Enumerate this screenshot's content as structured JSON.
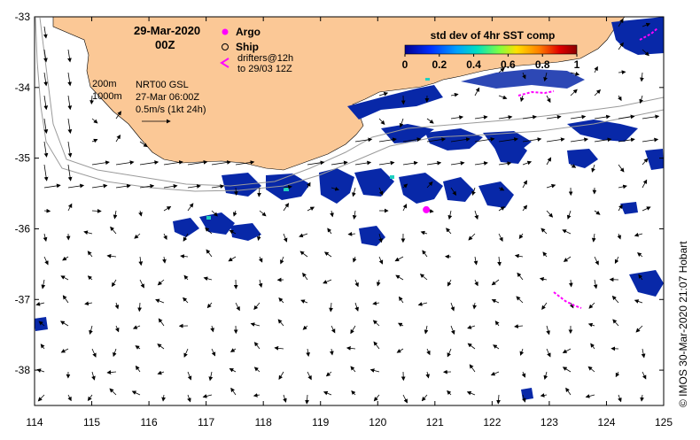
{
  "map": {
    "date": "29-Mar-2020",
    "time": "00Z",
    "legend": {
      "argo": "Argo",
      "ship": "Ship",
      "drifters_line1": "drifters@12h",
      "drifters_line2": "to 29/03 12Z"
    },
    "contours": {
      "c200": "200m",
      "c1000": "1000m"
    },
    "current_info": {
      "line1": "NRT00 GSL",
      "line2": "27-Mar 06:00Z",
      "line3": "0.5m/s (1kt 24h)"
    },
    "colorbar": {
      "title": "std dev of 4hr SST comp",
      "ticks": [
        "0",
        "0.2",
        "0.4",
        "0.6",
        "0.8",
        "1"
      ],
      "range": [
        0,
        1
      ]
    },
    "x_ticks": [
      "114",
      "115",
      "116",
      "117",
      "118",
      "119",
      "120",
      "121",
      "122",
      "123",
      "124",
      "125"
    ],
    "y_ticks": [
      "-33",
      "-34",
      "-35",
      "-36",
      "-37",
      "-38"
    ],
    "x_range": [
      114,
      125
    ],
    "y_range": [
      -38.5,
      -33
    ],
    "credit": "© IMOS 30-Mar-2020 21:07 Hobart",
    "colors": {
      "land": "#fbc896",
      "ocean": "#ffffff",
      "argo": "#ff00ff",
      "drifter": "#ff00ff",
      "sst_low": "#000090",
      "sst_high": "#8b0000"
    },
    "argo_float": {
      "lon": 120.85,
      "lat": -35.73
    }
  }
}
